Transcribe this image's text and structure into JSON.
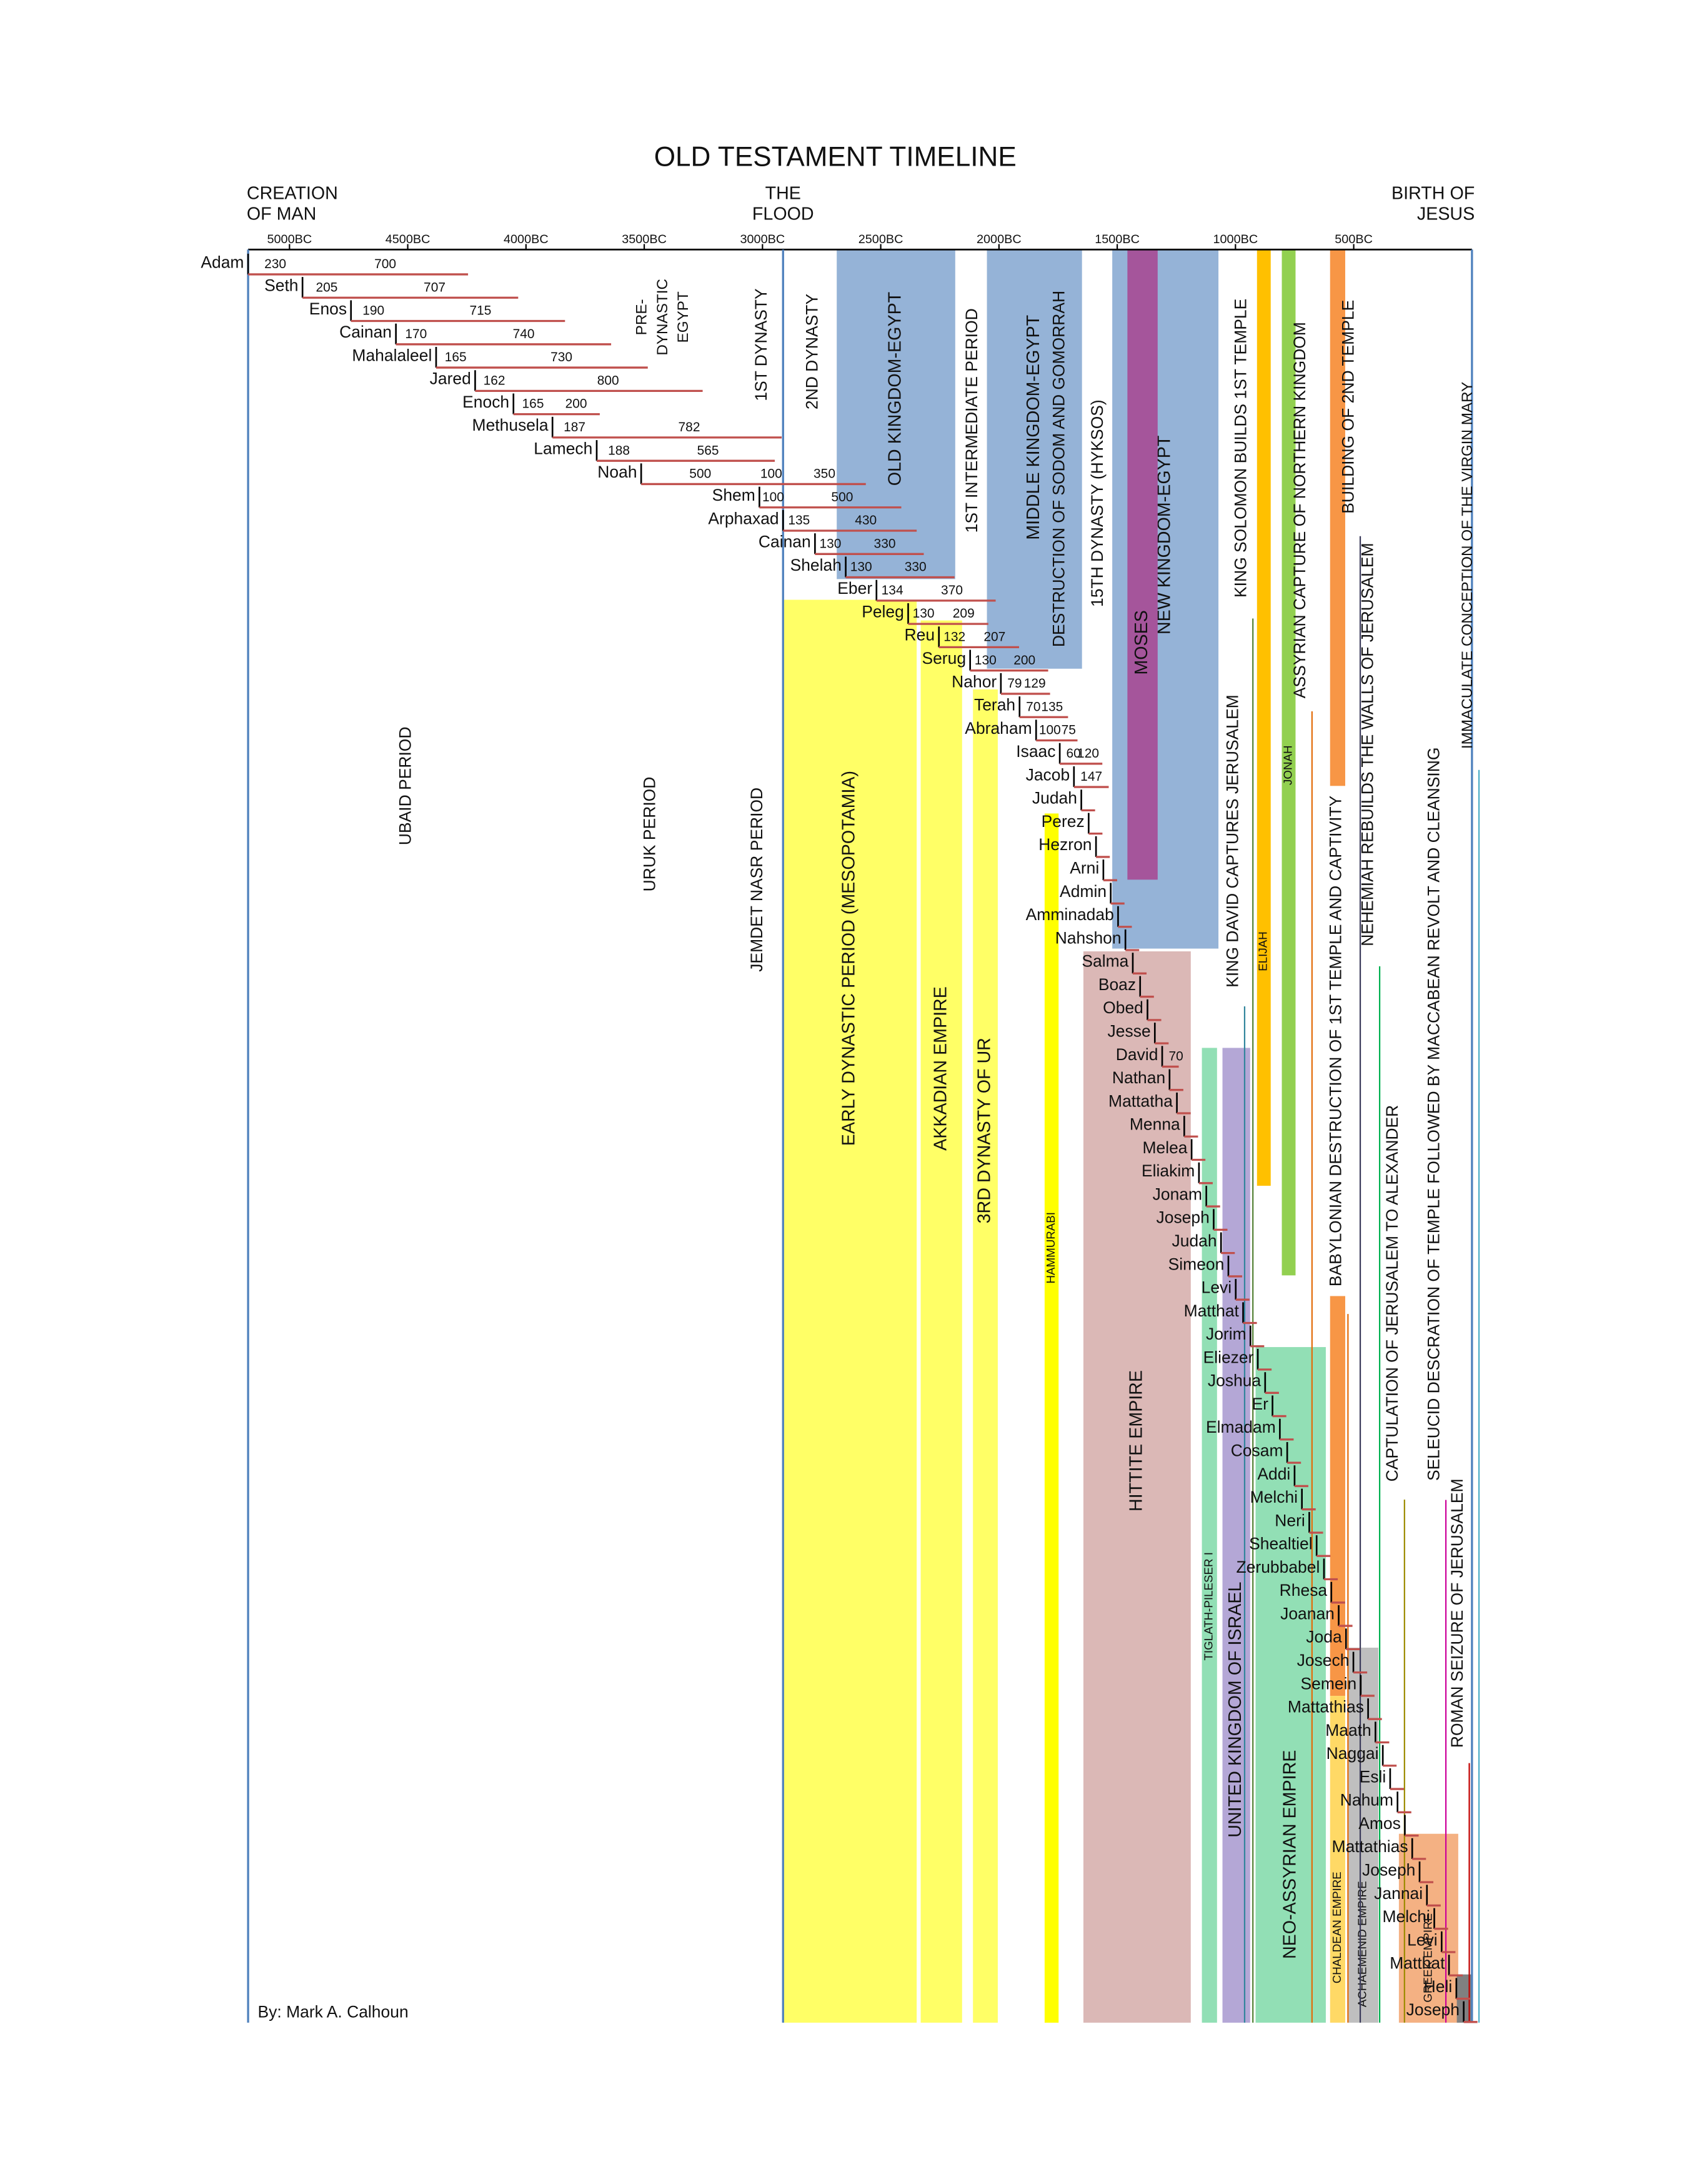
{
  "chart_data": {
    "type": "timeline",
    "title": "OLD TESTAMENT TIMELINE",
    "credit": "By: Mark A. Calhoun",
    "xlim": [
      -5175,
      0
    ],
    "xticks": [
      {
        "value": -5000,
        "label": "5000BC"
      },
      {
        "value": -4500,
        "label": "4500BC"
      },
      {
        "value": -4000,
        "label": "4000BC"
      },
      {
        "value": -3500,
        "label": "3500BC"
      },
      {
        "value": -3000,
        "label": "3000BC"
      },
      {
        "value": -2500,
        "label": "2500BC"
      },
      {
        "value": -2000,
        "label": "2000BC"
      },
      {
        "value": -1500,
        "label": "1500BC"
      },
      {
        "value": -1000,
        "label": "1000BC"
      },
      {
        "value": -500,
        "label": "500BC"
      }
    ],
    "creation": [
      "CREATION",
      "OF MAN"
    ],
    "flood": {
      "label": [
        "THE",
        "FLOOD"
      ],
      "x": -2913
    },
    "birth": [
      "BIRTH OF",
      "JESUS"
    ],
    "line_color": "#4f81bd",
    "life_color": "#c0504d",
    "bands": [
      {
        "label": "EARLY DYNASTIC PERIOD (MESOPOTAMIA)",
        "color": "#ffff66",
        "label_color": "#a5a52a",
        "start": -2914,
        "end": -2348
      },
      {
        "label": "AKKADIAN EMPIRE",
        "color": "#ffff66",
        "label_color": "#a5a52a",
        "start": -2331,
        "end": -2156
      },
      {
        "label": "3RD DYNASTY OF UR",
        "color": "#ffff66",
        "label_color": "#a5a52a",
        "start": -2110,
        "end": -2005
      },
      {
        "label": "HAMMURABI",
        "color": "#ffff00",
        "label_color": "#a5a52a",
        "start": -1807,
        "end": -1748
      },
      {
        "label": "OLD KINGDOM-EGYPT",
        "color": "#95b3d7",
        "label_color": "#ffffff",
        "start": -2686,
        "end": -2185
      },
      {
        "label": "MIDDLE KINGDOM-EGYPT",
        "color": "#95b3d7",
        "label_color": "#ffffff",
        "start": -2051,
        "end": -1649
      },
      {
        "label": "NEW KINGDOM-EGYPT",
        "color": "#95b3d7",
        "label_color": "#ffffff",
        "start": -1521,
        "end": -1072
      },
      {
        "label": "MOSES",
        "color": "#a5559b",
        "label_color": "#222222",
        "start": -1457,
        "end": -1329
      },
      {
        "label": "HITTITE EMPIRE",
        "color": "#dbb8b6",
        "label_color": "#8a7d2e",
        "start": -1643,
        "end": -1189
      },
      {
        "label": "TIGLATH-PILESER I",
        "color": "#92dfb5",
        "label_color": "#2a6f4a",
        "start": -1142,
        "end": -1078
      },
      {
        "label": "UNITED KINGDOM OF ISRAEL",
        "color": "#b4a7d6",
        "label_color": "#5f4b8b",
        "start": -1055,
        "end": -938
      },
      {
        "label": "NEO-ASSYRIAN EMPIRE",
        "color": "#92dfb5",
        "label_color": "#2a6f4a",
        "start": -915,
        "end": -618
      },
      {
        "label": "ELIJAH",
        "color": "#ffc000",
        "label_color": "#333333",
        "start": -909,
        "end": -851
      },
      {
        "label": "JONAH",
        "color": "#92d050",
        "label_color": "#333333",
        "start": -804,
        "end": -746
      },
      {
        "color": "#f79646",
        "start": -600,
        "end": -536
      },
      {
        "label": "CHALDEAN EMPIRE",
        "color": "#ffd966",
        "label_color": "#7f6000",
        "start": -600,
        "end": -536
      },
      {
        "label": "ACHAEMENID EMPIRE",
        "color": "#bfbfbf",
        "label_color": "#444444",
        "start": -524,
        "end": -396
      },
      {
        "label": "GREEK EMPIRE",
        "color": "#f4b183",
        "label_color": "#444444",
        "start": -309,
        "end": -58
      },
      {
        "color": "#808080",
        "start": -64,
        "end": 0
      }
    ],
    "events": [
      {
        "label": [
          "PRE-",
          "DYNASTIC",
          "EGYPT"
        ],
        "color": "#4f81bd",
        "x": -3420
      },
      {
        "label": [
          "1ST DYNASTY"
        ],
        "color": "#4f81bd",
        "x": -3001
      },
      {
        "label": [
          "2ND DYNASTY"
        ],
        "color": "#4f81bd",
        "x": -2786
      },
      {
        "label": [
          "UBAID PERIOD"
        ],
        "color": "#a5a52a",
        "x": -4505
      },
      {
        "label": [
          "URUK PERIOD"
        ],
        "color": "#a5a52a",
        "x": -3473
      },
      {
        "label": [
          "JEMDET NASR PERIOD"
        ],
        "color": "#a5a52a",
        "x": -3019
      },
      {
        "label": [
          "1ST INTERMEDIATE PERIOD"
        ],
        "color": "#4f81bd",
        "x": -2110
      },
      {
        "label": [
          "DESTRUCTION OF SODOM AND GOMORRAH"
        ],
        "color": "#984807",
        "x": -1742
      },
      {
        "label": [
          "15TH DYNASTY (HYKSOS)"
        ],
        "color": "#4f81bd",
        "x": -1579
      },
      {
        "label": [
          "KING SOLOMON BUILDS 1ST TEMPLE"
        ],
        "color": "#538135",
        "x": -973,
        "line": true
      },
      {
        "label": [
          "KING DAVID CAPTURES JERUSALEM"
        ],
        "color": "#31859c",
        "x": -1008,
        "line": true
      },
      {
        "label": [
          "ASSYRIAN CAPTURE OF NORTHERN KINGDOM"
        ],
        "color": "#e36c09",
        "x": -723,
        "line": true
      },
      {
        "label": [
          "BUILDING OF 2ND TEMPLE"
        ],
        "color": "#3a3a5a",
        "x": -519,
        "line": true
      },
      {
        "label": [
          "BABYLONIAN DESTRUCTION OF 1ST TEMPLE AND CAPTIVITY"
        ],
        "color": "#e36c09",
        "x": -571,
        "line": true
      },
      {
        "label": [
          "NEHEMIAH REBUILDS THE WALLS OF JERUSALEM"
        ],
        "color": "#00b050",
        "x": -437,
        "line": true
      },
      {
        "label": [
          "CAPTULATION OF JERUSALEM TO ALEXANDER"
        ],
        "color": "#9c8b00",
        "x": -332,
        "line": true
      },
      {
        "label": [
          "SELEUCID DESCRATION OF TEMPLE FOLLOWED BY MACCABEAN REVOLT AND CLEANSING"
        ],
        "color": "#cc0099",
        "x": -157,
        "line": true
      },
      {
        "label": [
          "ROMAN SEIZURE OF JERUSALEM"
        ],
        "color": "#c00000",
        "x": -58,
        "line": true
      },
      {
        "label": [
          "IMMACULATE CONCEPTION OF THE VIRGIN MARY"
        ],
        "color": "#4bacc6",
        "x": -17,
        "line": true
      }
    ],
    "people": [
      {
        "name": "Adam",
        "nums": [
          230,
          700
        ]
      },
      {
        "name": "Seth",
        "nums": [
          205,
          707
        ]
      },
      {
        "name": "Enos",
        "nums": [
          190,
          715
        ]
      },
      {
        "name": "Cainan",
        "nums": [
          170,
          740
        ]
      },
      {
        "name": "Mahalaleel",
        "nums": [
          165,
          730
        ]
      },
      {
        "name": "Jared",
        "nums": [
          162,
          800
        ]
      },
      {
        "name": "Enoch",
        "nums": [
          165,
          200
        ]
      },
      {
        "name": "Methusela",
        "nums": [
          187,
          782
        ]
      },
      {
        "name": "Lamech",
        "nums": [
          188,
          565
        ]
      },
      {
        "name": "Noah",
        "nums": [
          500,
          100,
          350
        ]
      },
      {
        "name": "Shem",
        "nums": [
          100,
          500
        ]
      },
      {
        "name": "Arphaxad",
        "nums": [
          135,
          430
        ]
      },
      {
        "name": "Cainan",
        "nums": [
          130,
          330
        ]
      },
      {
        "name": "Shelah",
        "nums": [
          130,
          330
        ]
      },
      {
        "name": "Eber",
        "nums": [
          134,
          370
        ]
      },
      {
        "name": "Peleg",
        "nums": [
          130,
          209
        ]
      },
      {
        "name": "Reu",
        "nums": [
          132,
          207
        ]
      },
      {
        "name": "Serug",
        "nums": [
          130,
          200
        ]
      },
      {
        "name": "Nahor",
        "nums": [
          79,
          129
        ]
      },
      {
        "name": "Terah",
        "nums": [
          70,
          135
        ]
      },
      {
        "name": "Abraham",
        "nums": [
          100,
          75
        ]
      },
      {
        "name": "Isaac",
        "nums": [
          60,
          120
        ]
      },
      {
        "name": "Jacob",
        "nums": [
          147
        ]
      },
      {
        "name": "Judah"
      },
      {
        "name": "Perez"
      },
      {
        "name": "Hezron"
      },
      {
        "name": "Arni"
      },
      {
        "name": "Admin"
      },
      {
        "name": "Amminadab"
      },
      {
        "name": "Nahshon"
      },
      {
        "name": "Salma"
      },
      {
        "name": "Boaz"
      },
      {
        "name": "Obed"
      },
      {
        "name": "Jesse"
      },
      {
        "name": "David",
        "nums": [
          70
        ]
      },
      {
        "name": "Nathan"
      },
      {
        "name": "Mattatha"
      },
      {
        "name": "Menna"
      },
      {
        "name": "Melea"
      },
      {
        "name": "Eliakim"
      },
      {
        "name": "Jonam"
      },
      {
        "name": "Joseph"
      },
      {
        "name": "Judah"
      },
      {
        "name": "Simeon"
      },
      {
        "name": "Levi"
      },
      {
        "name": "Matthat"
      },
      {
        "name": "Jorim"
      },
      {
        "name": "Eliezer"
      },
      {
        "name": "Joshua"
      },
      {
        "name": "Er"
      },
      {
        "name": "Elmadam"
      },
      {
        "name": "Cosam"
      },
      {
        "name": "Addi"
      },
      {
        "name": "Melchi"
      },
      {
        "name": "Neri"
      },
      {
        "name": "Shealtiel"
      },
      {
        "name": "Zerubbabel"
      },
      {
        "name": "Rhesa"
      },
      {
        "name": "Joanan"
      },
      {
        "name": "Joda"
      },
      {
        "name": "Josech"
      },
      {
        "name": "Semein"
      },
      {
        "name": "Mattathias"
      },
      {
        "name": "Maath"
      },
      {
        "name": "Naggai"
      },
      {
        "name": "Esli"
      },
      {
        "name": "Nahum"
      },
      {
        "name": "Amos"
      },
      {
        "name": "Mattathias"
      },
      {
        "name": "Joseph"
      },
      {
        "name": "Jannai"
      },
      {
        "name": "Melchi"
      },
      {
        "name": "Levi"
      },
      {
        "name": "Matthat"
      },
      {
        "name": "Heli"
      },
      {
        "name": "Joseph"
      }
    ]
  }
}
